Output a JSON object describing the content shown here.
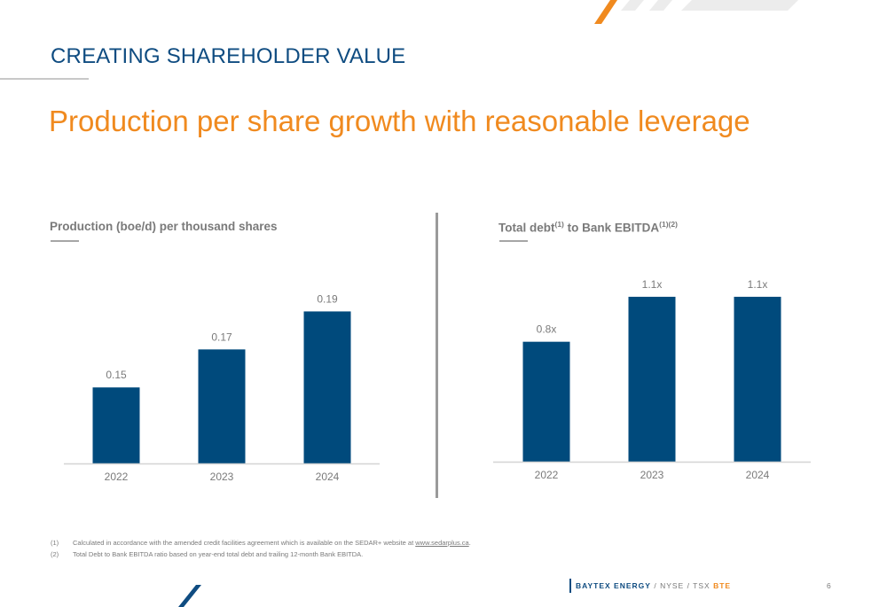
{
  "header": {
    "section_title": "CREATING SHAREHOLDER VALUE",
    "headline": "Production per share growth with reasonable leverage"
  },
  "colors": {
    "bar": "#004a7c",
    "accent": "#f08a1f",
    "navy": "#0f4c81",
    "text_gray": "#7a7a7a"
  },
  "chart_data": [
    {
      "type": "bar",
      "title": "Production (boe/d) per thousand shares",
      "categories": [
        "2022",
        "2023",
        "2024"
      ],
      "values": [
        0.15,
        0.17,
        0.19
      ],
      "value_labels": [
        "0.15",
        "0.17",
        "0.19"
      ],
      "ylim": [
        0.11,
        0.2
      ],
      "grid": false,
      "legend": "none"
    },
    {
      "type": "bar",
      "title": "Total debt",
      "title_sup1": "(1)",
      "title_mid": " to Bank EBITDA",
      "title_sup2": "(1)(2)",
      "categories": [
        "2022",
        "2023",
        "2024"
      ],
      "values": [
        0.8,
        1.1,
        1.1
      ],
      "value_labels": [
        "0.8x",
        "1.1x",
        "1.1x"
      ],
      "ylim": [
        0,
        1.2
      ],
      "grid": false,
      "legend": "none"
    }
  ],
  "footnotes": [
    {
      "num": "(1)",
      "text": "Calculated in accordance with the amended credit facilities agreement which is available on the SEDAR+ website at ",
      "link": "www.sedarplus.ca",
      "after": "."
    },
    {
      "num": "(2)",
      "text": "Total Debt to Bank EBITDA ratio based on year-end total debt and trailing 12-month Bank EBITDA."
    }
  ],
  "footer": {
    "brand": "BAYTEX ENERGY",
    "sep1": " / ",
    "nyse": "NYSE",
    "sep2": " / ",
    "tsx": "TSX ",
    "ticker": "BTE",
    "page_number": "6"
  }
}
